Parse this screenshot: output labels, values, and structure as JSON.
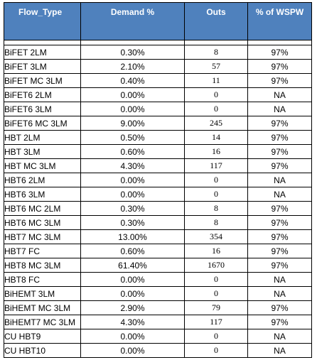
{
  "headers": {
    "flow_type": "Flow_Type",
    "demand": "Demand %",
    "outs": "Outs",
    "wspw": "% of WSPW"
  },
  "rows": [
    {
      "flow_type": "BiFET 2LM",
      "demand": "0.30%",
      "outs": "8",
      "wspw": "97%"
    },
    {
      "flow_type": "BiFET 3LM",
      "demand": "2.10%",
      "outs": "57",
      "wspw": "97%"
    },
    {
      "flow_type": "BiFET MC 3LM",
      "demand": "0.40%",
      "outs": "11",
      "wspw": "97%"
    },
    {
      "flow_type": "BiFET6 2LM",
      "demand": "0.00%",
      "outs": "0",
      "wspw": "NA"
    },
    {
      "flow_type": "BiFET6 3LM",
      "demand": "0.00%",
      "outs": "0",
      "wspw": "NA"
    },
    {
      "flow_type": "BiFET6 MC 3LM",
      "demand": "9.00%",
      "outs": "245",
      "wspw": "97%"
    },
    {
      "flow_type": "HBT 2LM",
      "demand": "0.50%",
      "outs": "14",
      "wspw": "97%"
    },
    {
      "flow_type": "HBT 3LM",
      "demand": "0.60%",
      "outs": "16",
      "wspw": "97%"
    },
    {
      "flow_type": "HBT MC 3LM",
      "demand": "4.30%",
      "outs": "117",
      "wspw": "97%"
    },
    {
      "flow_type": "HBT6 2LM",
      "demand": "0.00%",
      "outs": "0",
      "wspw": "NA"
    },
    {
      "flow_type": "HBT6 3LM",
      "demand": "0.00%",
      "outs": "0",
      "wspw": "NA"
    },
    {
      "flow_type": "HBT6 MC 2LM",
      "demand": "0.30%",
      "outs": "8",
      "wspw": "97%"
    },
    {
      "flow_type": "HBT6 MC 3LM",
      "demand": "0.30%",
      "outs": "8",
      "wspw": "97%"
    },
    {
      "flow_type": "HBT7 MC 3LM",
      "demand": "13.00%",
      "outs": "354",
      "wspw": "97%"
    },
    {
      "flow_type": "HBT7 FC",
      "demand": "0.60%",
      "outs": "16",
      "wspw": "97%"
    },
    {
      "flow_type": "HBT8 MC 3LM",
      "demand": "61.40%",
      "outs": "1670",
      "wspw": "97%"
    },
    {
      "flow_type": "HBT8 FC",
      "demand": "0.00%",
      "outs": "0",
      "wspw": "NA"
    },
    {
      "flow_type": "BiHEMT 3LM",
      "demand": "0.00%",
      "outs": "0",
      "wspw": "NA"
    },
    {
      "flow_type": "BiHEMT MC 3LM",
      "demand": "2.90%",
      "outs": "79",
      "wspw": "97%"
    },
    {
      "flow_type": "BiHEMT7 MC 3LM",
      "demand": "4.30%",
      "outs": "117",
      "wspw": "97%"
    },
    {
      "flow_type": "CU HBT9",
      "demand": "0.00%",
      "outs": "0",
      "wspw": "NA"
    },
    {
      "flow_type": "CU HBT10",
      "demand": "0.00%",
      "outs": "0",
      "wspw": "NA"
    }
  ],
  "colors": {
    "header_bg": "#4f81bd",
    "header_text": "#ffffff",
    "border": "#000000"
  }
}
